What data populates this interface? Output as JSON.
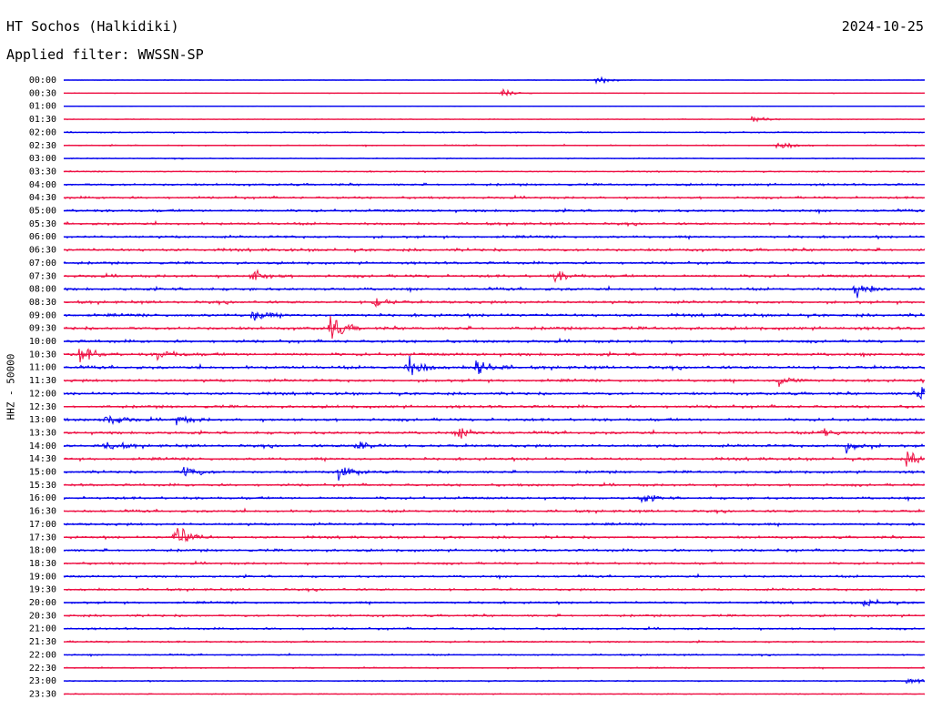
{
  "station_title": "HT Sochos (Halkidiki)",
  "date": "2024-10-25",
  "filter_label": "Applied filter: WWSSN-SP",
  "channel_label": "HHZ - 50000",
  "colors": {
    "blue": "#0000ee",
    "red": "#ee1144"
  },
  "chart_data": {
    "type": "line",
    "description": "helicorder",
    "trace_colors": [
      "blue",
      "red"
    ],
    "rows": [
      "00:00",
      "00:30",
      "01:00",
      "01:30",
      "02:00",
      "02:30",
      "03:00",
      "03:30",
      "04:00",
      "04:30",
      "05:00",
      "05:30",
      "06:00",
      "06:30",
      "07:00",
      "07:30",
      "08:00",
      "08:30",
      "09:00",
      "09:30",
      "10:00",
      "10:30",
      "11:00",
      "11:30",
      "12:00",
      "12:30",
      "13:00",
      "13:30",
      "14:00",
      "14:30",
      "15:00",
      "15:30",
      "16:00",
      "16:30",
      "17:00",
      "17:30",
      "18:00",
      "18:30",
      "19:00",
      "19:30",
      "20:00",
      "20:30",
      "21:00",
      "21:30",
      "22:00",
      "22:30",
      "23:00",
      "23:30"
    ],
    "relative_noise_level": [
      0.1,
      0.15,
      0.1,
      0.15,
      0.25,
      0.25,
      0.2,
      0.25,
      0.45,
      0.45,
      0.5,
      0.5,
      0.5,
      0.55,
      0.5,
      0.55,
      0.55,
      0.55,
      0.6,
      0.6,
      0.55,
      0.6,
      0.6,
      0.55,
      0.55,
      0.55,
      0.55,
      0.55,
      0.55,
      0.55,
      0.5,
      0.5,
      0.5,
      0.5,
      0.5,
      0.5,
      0.5,
      0.45,
      0.45,
      0.45,
      0.45,
      0.45,
      0.4,
      0.35,
      0.3,
      0.3,
      0.25,
      0.2
    ],
    "events": [
      {
        "row": 0,
        "x": 0.62,
        "amp": 0.5
      },
      {
        "row": 1,
        "x": 0.51,
        "amp": 0.4
      },
      {
        "row": 3,
        "x": 0.8,
        "amp": 0.4
      },
      {
        "row": 5,
        "x": 0.83,
        "amp": 0.55
      },
      {
        "row": 15,
        "x": 0.22,
        "amp": 0.8
      },
      {
        "row": 15,
        "x": 0.57,
        "amp": 0.7
      },
      {
        "row": 16,
        "x": 0.92,
        "amp": 0.8
      },
      {
        "row": 17,
        "x": 0.36,
        "amp": 0.7
      },
      {
        "row": 18,
        "x": 0.22,
        "amp": 0.8
      },
      {
        "row": 19,
        "x": 0.31,
        "amp": 1.4
      },
      {
        "row": 21,
        "x": 0.02,
        "amp": 1.1
      },
      {
        "row": 21,
        "x": 0.11,
        "amp": 0.7
      },
      {
        "row": 22,
        "x": 0.4,
        "amp": 1.4
      },
      {
        "row": 22,
        "x": 0.48,
        "amp": 1.4
      },
      {
        "row": 23,
        "x": 0.83,
        "amp": 0.8
      },
      {
        "row": 24,
        "x": 0.99,
        "amp": 0.7
      },
      {
        "row": 26,
        "x": 0.05,
        "amp": 0.9
      },
      {
        "row": 26,
        "x": 0.13,
        "amp": 0.6
      },
      {
        "row": 27,
        "x": 0.46,
        "amp": 0.8
      },
      {
        "row": 27,
        "x": 0.88,
        "amp": 0.7
      },
      {
        "row": 28,
        "x": 0.05,
        "amp": 0.7
      },
      {
        "row": 28,
        "x": 0.34,
        "amp": 0.8
      },
      {
        "row": 28,
        "x": 0.91,
        "amp": 1.0
      },
      {
        "row": 29,
        "x": 0.98,
        "amp": 0.9
      },
      {
        "row": 30,
        "x": 0.14,
        "amp": 0.8
      },
      {
        "row": 30,
        "x": 0.32,
        "amp": 0.9
      },
      {
        "row": 32,
        "x": 0.67,
        "amp": 0.6
      },
      {
        "row": 35,
        "x": 0.13,
        "amp": 2.0
      },
      {
        "row": 40,
        "x": 0.93,
        "amp": 0.6
      },
      {
        "row": 46,
        "x": 0.98,
        "amp": 0.6
      }
    ]
  }
}
